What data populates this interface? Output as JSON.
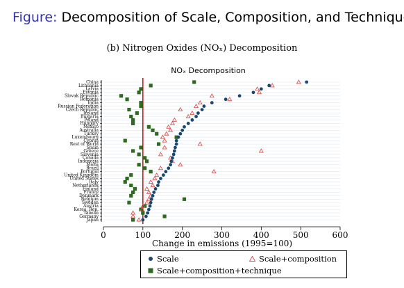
{
  "slide": {
    "title_prefix": "Figure:",
    "title_text": "Decomposition of Scale, Composition, and Technique"
  },
  "subcaption": "(b) Nitrogen Oxides (NOₓ) Decomposition",
  "chart_data": {
    "type": "scatter",
    "title": "NOₓ Decomposition",
    "xlabel": "Change in emissions (1995=100)",
    "ylabel": "",
    "xlim": [
      0,
      600
    ],
    "xticks": [
      0,
      100,
      200,
      300,
      400,
      500,
      600
    ],
    "reference_line": 100,
    "categories": [
      "China",
      "Lithuania",
      "Latvia",
      "Estonia",
      "Slovak Republic",
      "Romania",
      "India",
      "Russian Federation",
      "Czech Republic",
      "Ireland",
      "Bulgaria",
      "Poland",
      "Hungary",
      "Mexico",
      "Australia",
      "Turkey",
      "Luxembourg",
      "Cyprus",
      "Rest of World",
      "Spain",
      "Greece",
      "Slovenia",
      "Canada",
      "Indonesia",
      "Malta",
      "Brazil",
      "Portugal",
      "United Kingdom",
      "United States",
      "Italy",
      "Netherlands",
      "Finland",
      "France",
      "Denmark",
      "Belgium",
      "Sweden",
      "Austria",
      "Korea, Rep.",
      "Taiwan",
      "Germany",
      "Japan"
    ],
    "series": [
      {
        "name": "Scale",
        "color": "#1a476f",
        "marker": "circle",
        "values": [
          515,
          420,
          400,
          380,
          345,
          310,
          275,
          255,
          250,
          240,
          235,
          225,
          215,
          205,
          200,
          195,
          190,
          185,
          185,
          182,
          180,
          178,
          175,
          172,
          170,
          165,
          158,
          152,
          145,
          140,
          138,
          132,
          128,
          125,
          122,
          120,
          118,
          115,
          112,
          108,
          100
        ]
      },
      {
        "name": "Scale+composition",
        "color": "#d9534f",
        "marker": "triangle",
        "values": [
          495,
          428,
          390,
          395,
          275,
          320,
          245,
          235,
          195,
          225,
          215,
          180,
          175,
          165,
          170,
          160,
          150,
          155,
          245,
          155,
          400,
          145,
          170,
          175,
          195,
          145,
          280,
          135,
          130,
          120,
          125,
          110,
          115,
          120,
          115,
          110,
          100,
          98,
          75,
          75,
          90
        ]
      },
      {
        "name": "Scale+composition+technique",
        "color": "#2d6a1f",
        "marker": "square",
        "values": [
          230,
          120,
          95,
          90,
          45,
          60,
          95,
          95,
          65,
          85,
          70,
          75,
          75,
          115,
          125,
          135,
          185,
          55,
          140,
          95,
          75,
          90,
          105,
          110,
          90,
          105,
          120,
          70,
          60,
          55,
          70,
          80,
          75,
          70,
          205,
          65,
          105,
          95,
          100,
          155,
          75
        ]
      }
    ],
    "legend_position": "bottom",
    "grid": true
  }
}
